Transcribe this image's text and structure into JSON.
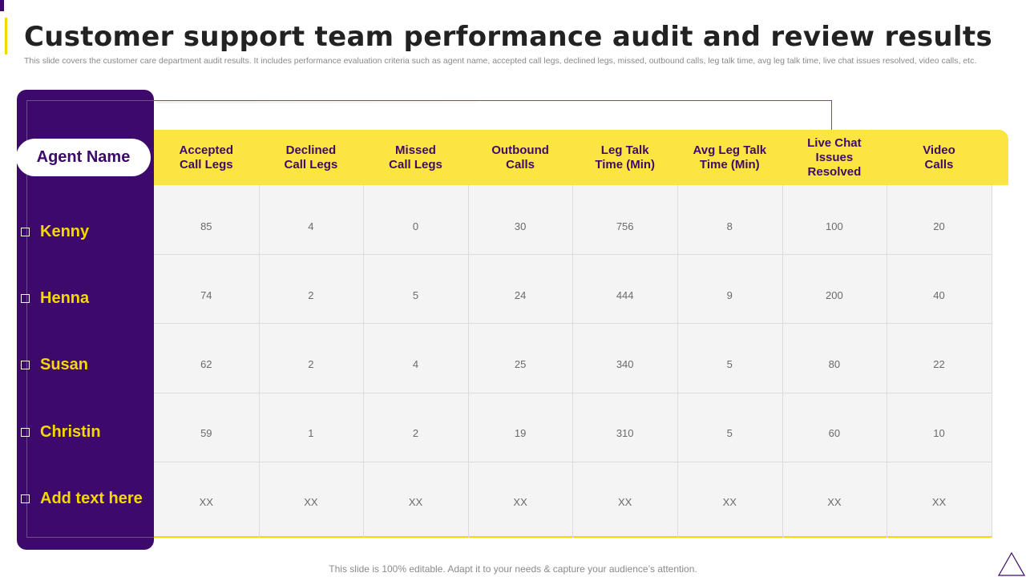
{
  "slide": {
    "title": "Customer support team performance audit and review results",
    "subtitle": "This slide covers the customer care department audit results. It includes performance evaluation criteria such as agent name, accepted call legs, declined legs, missed, outbound calls, leg talk time, avg leg talk time, live chat issues resolved, video calls, etc.",
    "footer": "This slide is 100% editable. Adapt it to your needs & capture your audience’s attention."
  },
  "table": {
    "agent_header": "Agent Name",
    "columns": [
      "Accepted\nCall Legs",
      "Declined\nCall Legs",
      "Missed\nCall Legs",
      "Outbound\nCalls",
      "Leg Talk\nTime (Min)",
      "Avg Leg Talk\nTime (Min)",
      "Live Chat\nIssues\nResolved",
      "Video\nCalls"
    ],
    "rows": [
      {
        "agent": "Kenny",
        "values": [
          "85",
          "4",
          "0",
          "30",
          "756",
          "8",
          "100",
          "20"
        ]
      },
      {
        "agent": "Henna",
        "values": [
          "74",
          "2",
          "5",
          "24",
          "444",
          "9",
          "200",
          "40"
        ]
      },
      {
        "agent": "Susan",
        "values": [
          "62",
          "2",
          "4",
          "25",
          "340",
          "5",
          "80",
          "22"
        ]
      },
      {
        "agent": "Christin",
        "values": [
          "59",
          "1",
          "2",
          "19",
          "310",
          "5",
          "60",
          "10"
        ]
      },
      {
        "agent": "Add text here",
        "values": [
          "XX",
          "XX",
          "XX",
          "XX",
          "XX",
          "XX",
          "XX",
          "XX"
        ]
      }
    ]
  },
  "colors": {
    "purple": "#3d0a6b",
    "yellow": "#f5d800",
    "header_yellow": "#fde541"
  }
}
